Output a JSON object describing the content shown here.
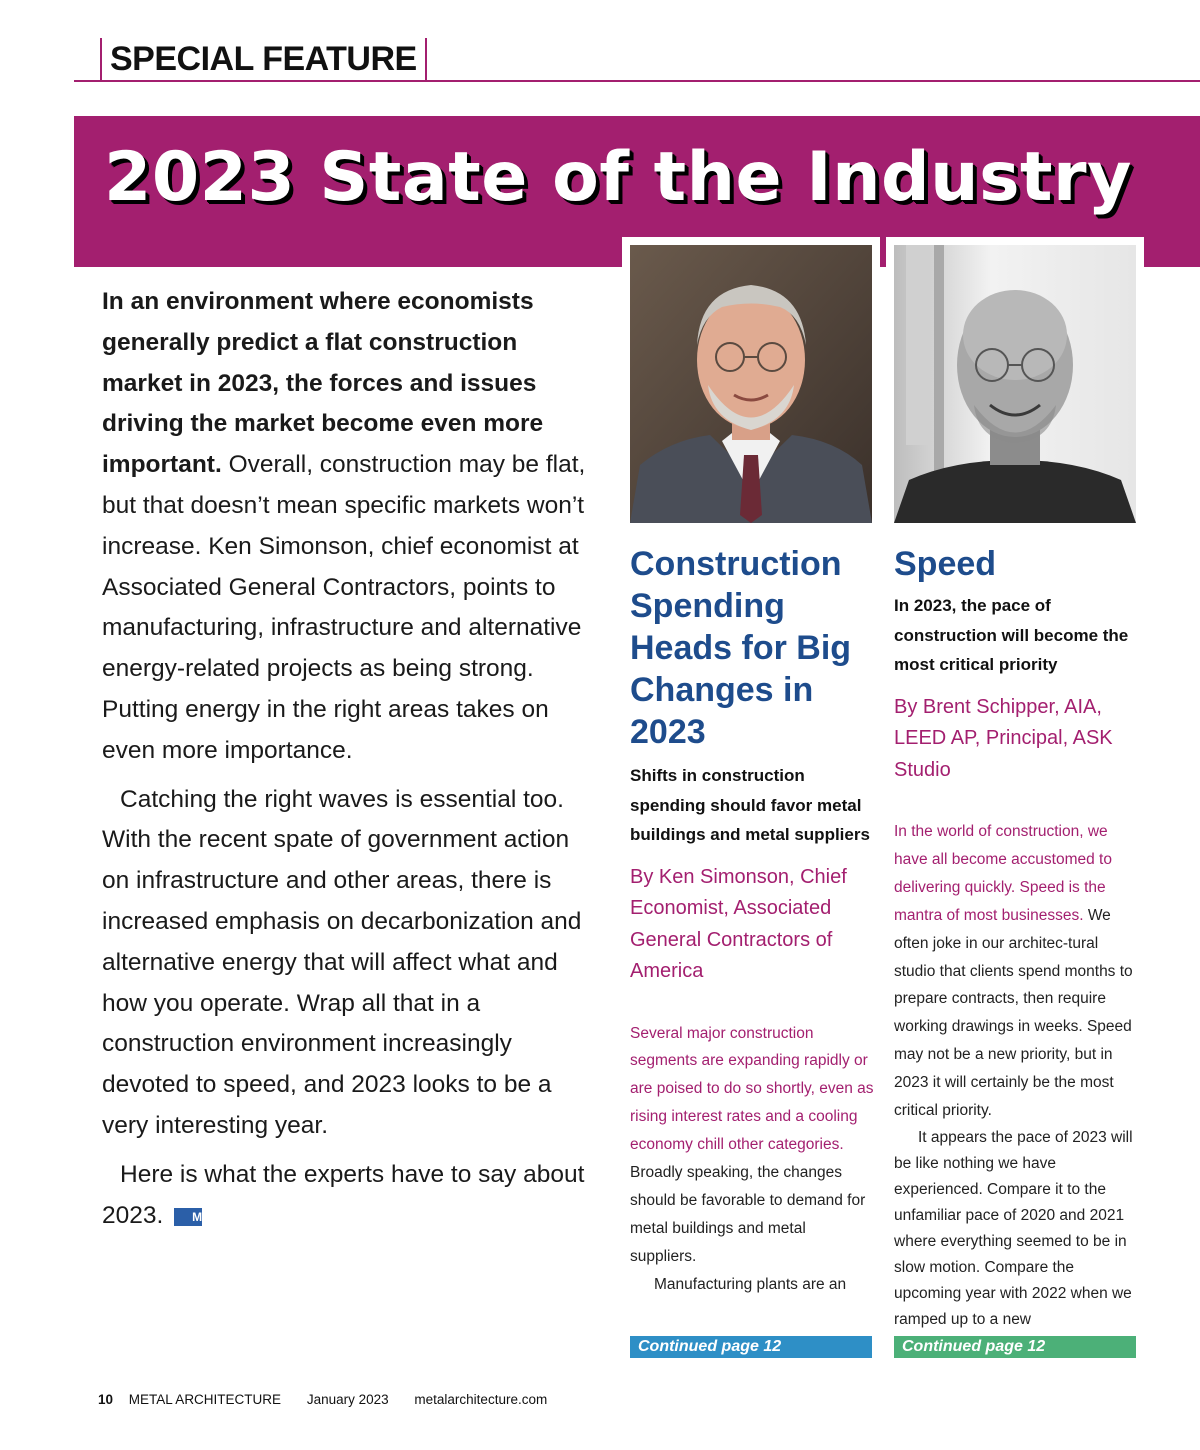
{
  "header": {
    "section_label": "SPECIAL FEATURE"
  },
  "banner": {
    "title": "2023 State of the Industry"
  },
  "intro": {
    "lead": "In an environment where economists generally predict a flat construction market in 2023, the forces and issues driving the market become even more important.",
    "p1": "Overall, construction may be flat, but that doesn’t mean specific markets won’t increase. Ken Simonson, chief economist at Associated General Contractors, points to manufacturing, infrastructure and alternative energy-related projects as being strong. Putting energy in the right areas takes on even more importance.",
    "p2": "Catching the right waves is essential too. With the recent spate of government action on infrastructure and other areas, there is increased emphasis on decarbonization and alternative energy that will affect what and how you operate. Wrap all that in a construction environment increasingly devoted to speed, and 2023 looks to be a very interesting year.",
    "p3": "Here is what the experts have to say about 2023.",
    "end_mark": "Ma"
  },
  "articles": [
    {
      "title": "Construction Spending Heads for Big Changes in 2023",
      "deck": "Shifts in construction spending should favor metal buildings and metal suppliers",
      "byline": "By Ken Simonson, Chief Economist, Associated General Contractors of America",
      "body_highlight": "Several major construction segments are expanding rapidly or are poised to do so shortly, even as rising interest rates and a cooling economy chill other categories.",
      "body_rest": " Broadly speaking, the changes should be favorable to demand for metal buildings and metal suppliers.",
      "body_p2": "Manufacturing plants are an",
      "continued": "Continued page 12",
      "continued_color": "#2e8fc6"
    },
    {
      "title": "Speed",
      "deck": "In 2023, the pace of construction will become the most critical priority",
      "byline": "By Brent Schipper, AIA, LEED AP, Principal, ASK Studio",
      "body_highlight": "In the world of construction, we have all become accustomed to delivering quickly. Speed is the mantra of most businesses.",
      "body_rest": " We often joke in our architec-tural studio that clients spend months to prepare contracts, then require working drawings in weeks. Speed may not be a new priority, but in 2023 it will certainly be the most critical priority.",
      "body_p2": "It appears the pace of 2023 will be like nothing we have experienced. Compare it to the unfamiliar pace of 2020 and 2021 where everything seemed to be in slow motion. Compare the upcoming year with 2022 when we ramped up to a new",
      "continued": "Continued page 12",
      "continued_color": "#4cb078"
    }
  ],
  "footer": {
    "page_number": "10",
    "publication": "METAL ARCHITECTURE",
    "issue": "January 2023",
    "website": "metalarchitecture.com"
  },
  "colors": {
    "accent": "#a31f6f",
    "headline_blue": "#1e4c8c"
  }
}
